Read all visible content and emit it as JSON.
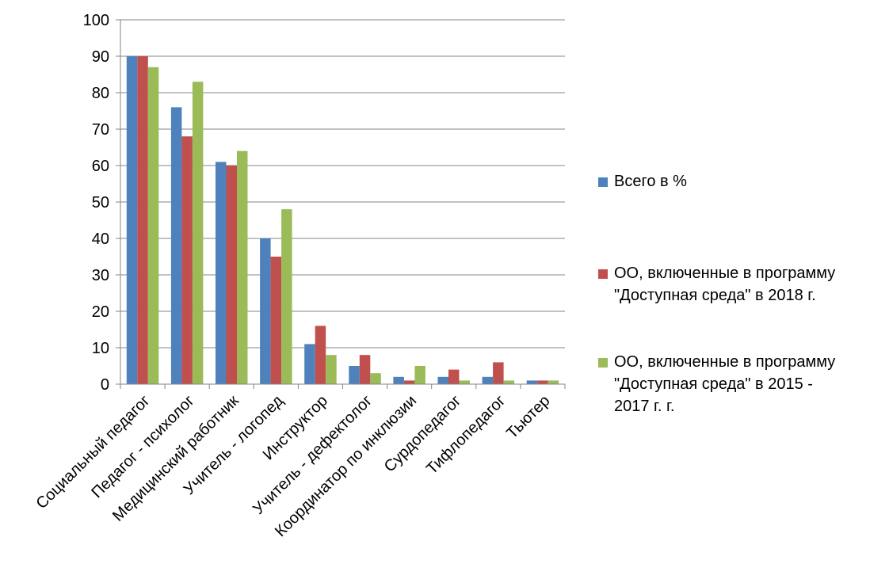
{
  "chart_data": {
    "type": "bar",
    "title": "",
    "xlabel": "",
    "ylabel": "",
    "ylim": [
      0,
      100
    ],
    "yticks": [
      0,
      10,
      20,
      30,
      40,
      50,
      60,
      70,
      80,
      90,
      100
    ],
    "grid": true,
    "legend_position": "right",
    "categories": [
      "Социальный педагог",
      "Педагог - психолог",
      "Медицинский работник",
      "Учитель - логопед",
      "Инструктор",
      "Учитель - дефектолог",
      "Координатор по инклюзии",
      "Сурдопедагог",
      "Тифлопедагог",
      "Тьютер"
    ],
    "series": [
      {
        "name": "Всего в %",
        "color": "#4F81BD",
        "values": [
          90,
          76,
          61,
          40,
          11,
          5,
          2,
          2,
          2,
          1
        ]
      },
      {
        "name": "ОО, включенные в программу\n\"Доступная среда\" в 2018 г.",
        "color": "#C0504D",
        "values": [
          90,
          68,
          60,
          35,
          16,
          8,
          1,
          4,
          6,
          1
        ]
      },
      {
        "name": "ОО, включенные в программу\n\"Доступная среда\" в 2015 -\n2017 г. г.",
        "color": "#9BBB59",
        "values": [
          87,
          83,
          64,
          48,
          8,
          3,
          5,
          1,
          1,
          1
        ]
      }
    ]
  }
}
